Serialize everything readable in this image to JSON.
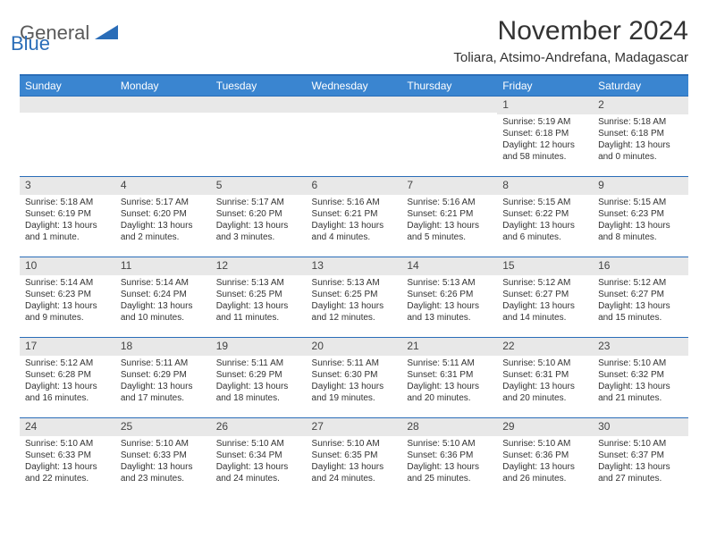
{
  "logo": {
    "word1": "General",
    "word2": "Blue",
    "word1_color": "#5a5a5a",
    "word2_color": "#2a6db8"
  },
  "title": "November 2024",
  "location": "Toliara, Atsimo-Andrefana, Madagascar",
  "colors": {
    "header_bg": "#3a85d0",
    "header_text": "#ffffff",
    "border": "#2a6db8",
    "date_bg": "#e8e8e8",
    "text": "#333333"
  },
  "day_names": [
    "Sunday",
    "Monday",
    "Tuesday",
    "Wednesday",
    "Thursday",
    "Friday",
    "Saturday"
  ],
  "weeks": [
    [
      {
        "date": "",
        "sunrise": "",
        "sunset": "",
        "daylight": ""
      },
      {
        "date": "",
        "sunrise": "",
        "sunset": "",
        "daylight": ""
      },
      {
        "date": "",
        "sunrise": "",
        "sunset": "",
        "daylight": ""
      },
      {
        "date": "",
        "sunrise": "",
        "sunset": "",
        "daylight": ""
      },
      {
        "date": "",
        "sunrise": "",
        "sunset": "",
        "daylight": ""
      },
      {
        "date": "1",
        "sunrise": "Sunrise: 5:19 AM",
        "sunset": "Sunset: 6:18 PM",
        "daylight": "Daylight: 12 hours and 58 minutes."
      },
      {
        "date": "2",
        "sunrise": "Sunrise: 5:18 AM",
        "sunset": "Sunset: 6:18 PM",
        "daylight": "Daylight: 13 hours and 0 minutes."
      }
    ],
    [
      {
        "date": "3",
        "sunrise": "Sunrise: 5:18 AM",
        "sunset": "Sunset: 6:19 PM",
        "daylight": "Daylight: 13 hours and 1 minute."
      },
      {
        "date": "4",
        "sunrise": "Sunrise: 5:17 AM",
        "sunset": "Sunset: 6:20 PM",
        "daylight": "Daylight: 13 hours and 2 minutes."
      },
      {
        "date": "5",
        "sunrise": "Sunrise: 5:17 AM",
        "sunset": "Sunset: 6:20 PM",
        "daylight": "Daylight: 13 hours and 3 minutes."
      },
      {
        "date": "6",
        "sunrise": "Sunrise: 5:16 AM",
        "sunset": "Sunset: 6:21 PM",
        "daylight": "Daylight: 13 hours and 4 minutes."
      },
      {
        "date": "7",
        "sunrise": "Sunrise: 5:16 AM",
        "sunset": "Sunset: 6:21 PM",
        "daylight": "Daylight: 13 hours and 5 minutes."
      },
      {
        "date": "8",
        "sunrise": "Sunrise: 5:15 AM",
        "sunset": "Sunset: 6:22 PM",
        "daylight": "Daylight: 13 hours and 6 minutes."
      },
      {
        "date": "9",
        "sunrise": "Sunrise: 5:15 AM",
        "sunset": "Sunset: 6:23 PM",
        "daylight": "Daylight: 13 hours and 8 minutes."
      }
    ],
    [
      {
        "date": "10",
        "sunrise": "Sunrise: 5:14 AM",
        "sunset": "Sunset: 6:23 PM",
        "daylight": "Daylight: 13 hours and 9 minutes."
      },
      {
        "date": "11",
        "sunrise": "Sunrise: 5:14 AM",
        "sunset": "Sunset: 6:24 PM",
        "daylight": "Daylight: 13 hours and 10 minutes."
      },
      {
        "date": "12",
        "sunrise": "Sunrise: 5:13 AM",
        "sunset": "Sunset: 6:25 PM",
        "daylight": "Daylight: 13 hours and 11 minutes."
      },
      {
        "date": "13",
        "sunrise": "Sunrise: 5:13 AM",
        "sunset": "Sunset: 6:25 PM",
        "daylight": "Daylight: 13 hours and 12 minutes."
      },
      {
        "date": "14",
        "sunrise": "Sunrise: 5:13 AM",
        "sunset": "Sunset: 6:26 PM",
        "daylight": "Daylight: 13 hours and 13 minutes."
      },
      {
        "date": "15",
        "sunrise": "Sunrise: 5:12 AM",
        "sunset": "Sunset: 6:27 PM",
        "daylight": "Daylight: 13 hours and 14 minutes."
      },
      {
        "date": "16",
        "sunrise": "Sunrise: 5:12 AM",
        "sunset": "Sunset: 6:27 PM",
        "daylight": "Daylight: 13 hours and 15 minutes."
      }
    ],
    [
      {
        "date": "17",
        "sunrise": "Sunrise: 5:12 AM",
        "sunset": "Sunset: 6:28 PM",
        "daylight": "Daylight: 13 hours and 16 minutes."
      },
      {
        "date": "18",
        "sunrise": "Sunrise: 5:11 AM",
        "sunset": "Sunset: 6:29 PM",
        "daylight": "Daylight: 13 hours and 17 minutes."
      },
      {
        "date": "19",
        "sunrise": "Sunrise: 5:11 AM",
        "sunset": "Sunset: 6:29 PM",
        "daylight": "Daylight: 13 hours and 18 minutes."
      },
      {
        "date": "20",
        "sunrise": "Sunrise: 5:11 AM",
        "sunset": "Sunset: 6:30 PM",
        "daylight": "Daylight: 13 hours and 19 minutes."
      },
      {
        "date": "21",
        "sunrise": "Sunrise: 5:11 AM",
        "sunset": "Sunset: 6:31 PM",
        "daylight": "Daylight: 13 hours and 20 minutes."
      },
      {
        "date": "22",
        "sunrise": "Sunrise: 5:10 AM",
        "sunset": "Sunset: 6:31 PM",
        "daylight": "Daylight: 13 hours and 20 minutes."
      },
      {
        "date": "23",
        "sunrise": "Sunrise: 5:10 AM",
        "sunset": "Sunset: 6:32 PM",
        "daylight": "Daylight: 13 hours and 21 minutes."
      }
    ],
    [
      {
        "date": "24",
        "sunrise": "Sunrise: 5:10 AM",
        "sunset": "Sunset: 6:33 PM",
        "daylight": "Daylight: 13 hours and 22 minutes."
      },
      {
        "date": "25",
        "sunrise": "Sunrise: 5:10 AM",
        "sunset": "Sunset: 6:33 PM",
        "daylight": "Daylight: 13 hours and 23 minutes."
      },
      {
        "date": "26",
        "sunrise": "Sunrise: 5:10 AM",
        "sunset": "Sunset: 6:34 PM",
        "daylight": "Daylight: 13 hours and 24 minutes."
      },
      {
        "date": "27",
        "sunrise": "Sunrise: 5:10 AM",
        "sunset": "Sunset: 6:35 PM",
        "daylight": "Daylight: 13 hours and 24 minutes."
      },
      {
        "date": "28",
        "sunrise": "Sunrise: 5:10 AM",
        "sunset": "Sunset: 6:36 PM",
        "daylight": "Daylight: 13 hours and 25 minutes."
      },
      {
        "date": "29",
        "sunrise": "Sunrise: 5:10 AM",
        "sunset": "Sunset: 6:36 PM",
        "daylight": "Daylight: 13 hours and 26 minutes."
      },
      {
        "date": "30",
        "sunrise": "Sunrise: 5:10 AM",
        "sunset": "Sunset: 6:37 PM",
        "daylight": "Daylight: 13 hours and 27 minutes."
      }
    ]
  ]
}
